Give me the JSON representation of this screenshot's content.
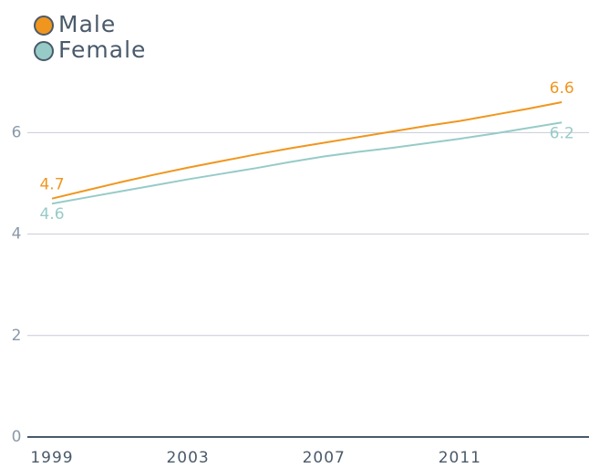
{
  "chart_data": {
    "type": "line",
    "x": [
      1999,
      2000,
      2001,
      2002,
      2003,
      2004,
      2005,
      2006,
      2007,
      2008,
      2009,
      2010,
      2011,
      2012,
      2013,
      2014
    ],
    "series": [
      {
        "name": "Male",
        "color": "#f0961e",
        "values": [
          4.7,
          4.86,
          5.02,
          5.17,
          5.31,
          5.44,
          5.57,
          5.69,
          5.8,
          5.91,
          6.02,
          6.13,
          6.23,
          6.35,
          6.47,
          6.6
        ]
      },
      {
        "name": "Female",
        "color": "#96cbc8",
        "values": [
          4.6,
          4.72,
          4.84,
          4.96,
          5.08,
          5.19,
          5.3,
          5.42,
          5.53,
          5.62,
          5.7,
          5.79,
          5.88,
          5.98,
          6.09,
          6.2
        ]
      }
    ],
    "xlim": [
      1999,
      2014.8
    ],
    "xticks": [
      1999,
      2003,
      2007,
      2011
    ],
    "ylim": [
      0,
      7.5
    ],
    "yticks": [
      0,
      2,
      4,
      6
    ],
    "grid": true,
    "legend": "top-left"
  }
}
